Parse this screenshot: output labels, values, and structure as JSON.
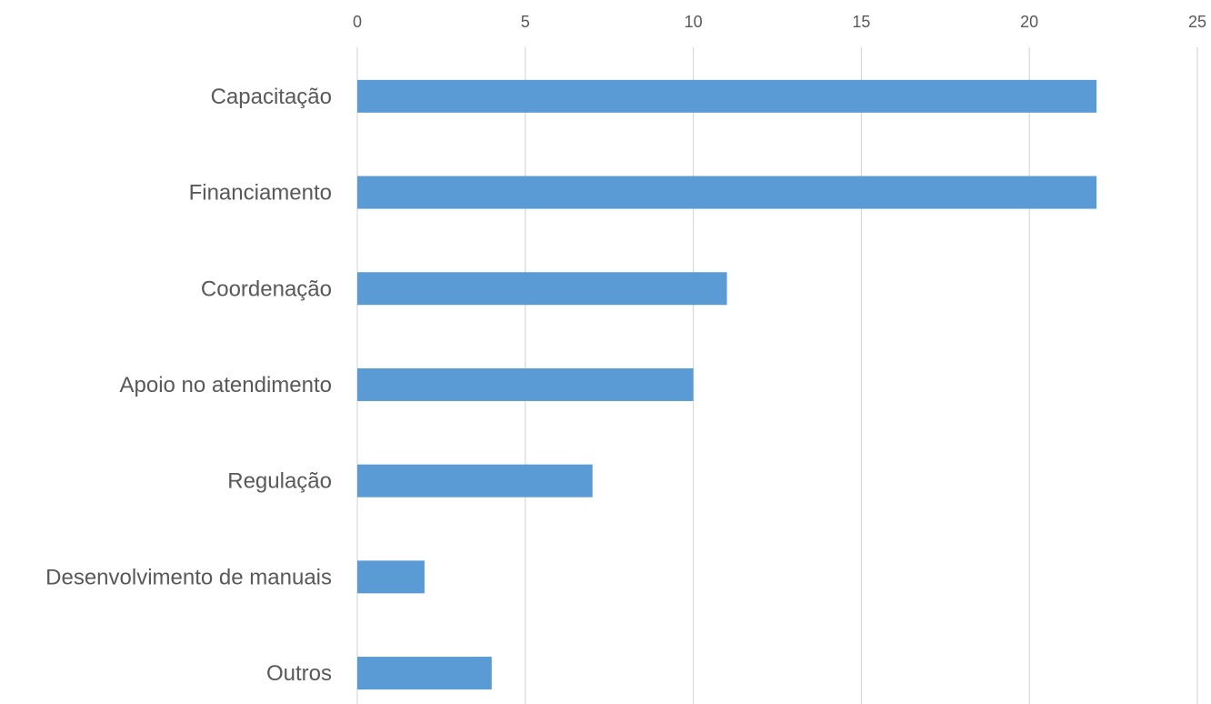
{
  "chart_data": {
    "type": "bar",
    "orientation": "horizontal",
    "categories": [
      "Capacitação",
      "Financiamento",
      "Coordenação",
      "Apoio no atendimento",
      "Regulação",
      "Desenvolvimento de manuais",
      "Outros"
    ],
    "values": [
      22,
      22,
      11,
      10,
      7,
      2,
      4
    ],
    "title": "",
    "xlabel": "",
    "ylabel": "",
    "xlim": [
      0,
      25
    ],
    "x_ticks": [
      "0",
      "5",
      "10",
      "15",
      "20",
      "25"
    ],
    "x_axis_position": "top",
    "grid": true,
    "legend": "none",
    "bar_color": "#5b9bd5",
    "grid_color": "#d9d9d9",
    "text_color": "#595959"
  }
}
